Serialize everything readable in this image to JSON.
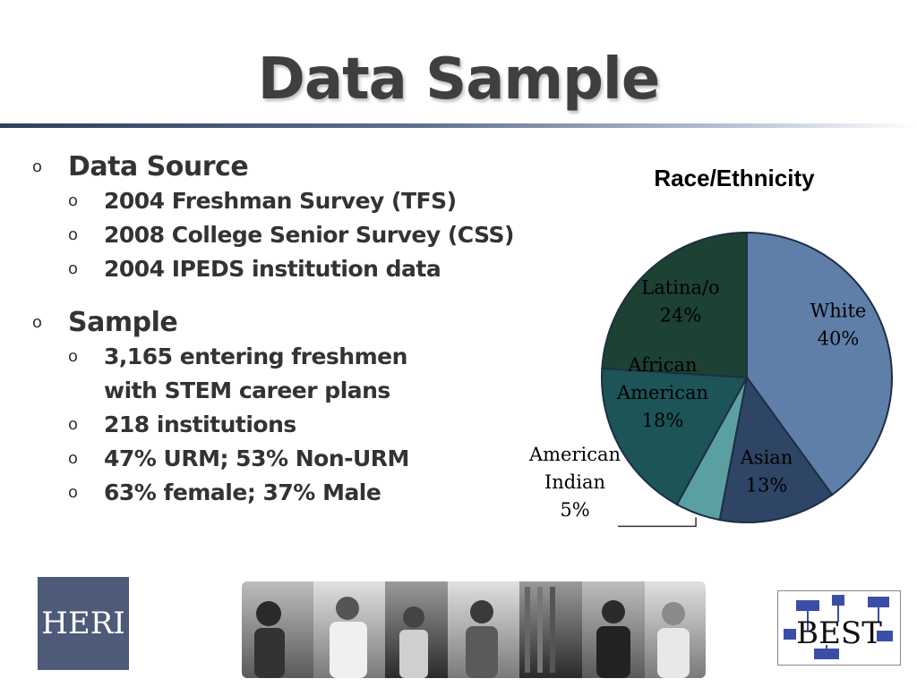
{
  "slide": {
    "title": "Data Sample"
  },
  "content": {
    "sections": [
      {
        "heading": "Data Source",
        "items": [
          {
            "text": "2004 Freshman Survey (TFS)"
          },
          {
            "text": "2008 College Senior Survey (CSS)"
          },
          {
            "text": "2004 IPEDS institution data"
          }
        ]
      },
      {
        "heading": "Sample",
        "items": [
          {
            "lines": [
              "3,165 entering freshmen",
              "with STEM career plans"
            ]
          },
          {
            "text": "218 institutions"
          },
          {
            "text": "47% URM; 53% Non-URM"
          },
          {
            "text": "63% female; 37% Male"
          }
        ]
      }
    ]
  },
  "chart_data": {
    "type": "pie",
    "title": "Race/Ethnicity",
    "slices": [
      {
        "label": "White",
        "value": 40,
        "value_label": "40%",
        "color": "#5f7fa8"
      },
      {
        "label": "Asian",
        "value": 13,
        "value_label": "13%",
        "color": "#2f4566"
      },
      {
        "label": "American Indian",
        "value": 5,
        "value_label": "5%",
        "color": "#5aa0a0"
      },
      {
        "label": "African American",
        "value": 18,
        "value_label": "18%",
        "color": "#1d5457"
      },
      {
        "label": "Latina/o",
        "value": 24,
        "value_label": "24%",
        "color": "#1d4233"
      }
    ],
    "start_angle": "12 o'clock",
    "direction": "clockwise"
  },
  "logos": {
    "heri": "HERI",
    "best": "BEST"
  }
}
